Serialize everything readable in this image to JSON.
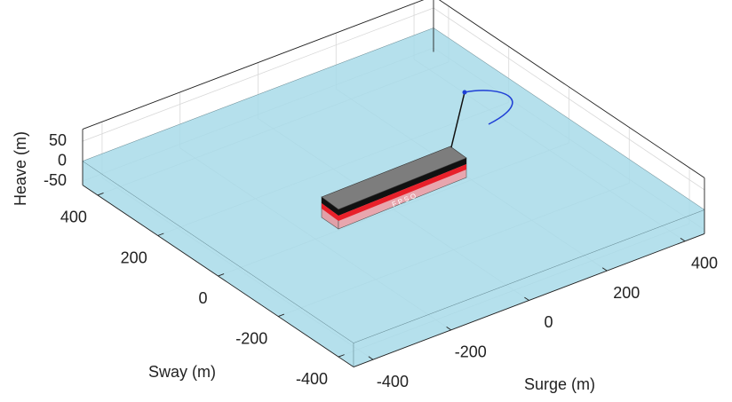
{
  "chart_data": {
    "type": "box3d",
    "xlabel": "Surge (m)",
    "ylabel": "Sway (m)",
    "zlabel": "Heave (m)",
    "xlim": [
      -450,
      450
    ],
    "ylim": [
      -450,
      450
    ],
    "zlim": [
      -60,
      80
    ],
    "xticks": [
      -400,
      -200,
      0,
      200,
      400
    ],
    "yticks": [
      -400,
      -200,
      0,
      200,
      400
    ],
    "zticks": [
      -50,
      0,
      50
    ],
    "grid": true,
    "water_color": "#a8dbe9",
    "annotation": "F P S O"
  }
}
